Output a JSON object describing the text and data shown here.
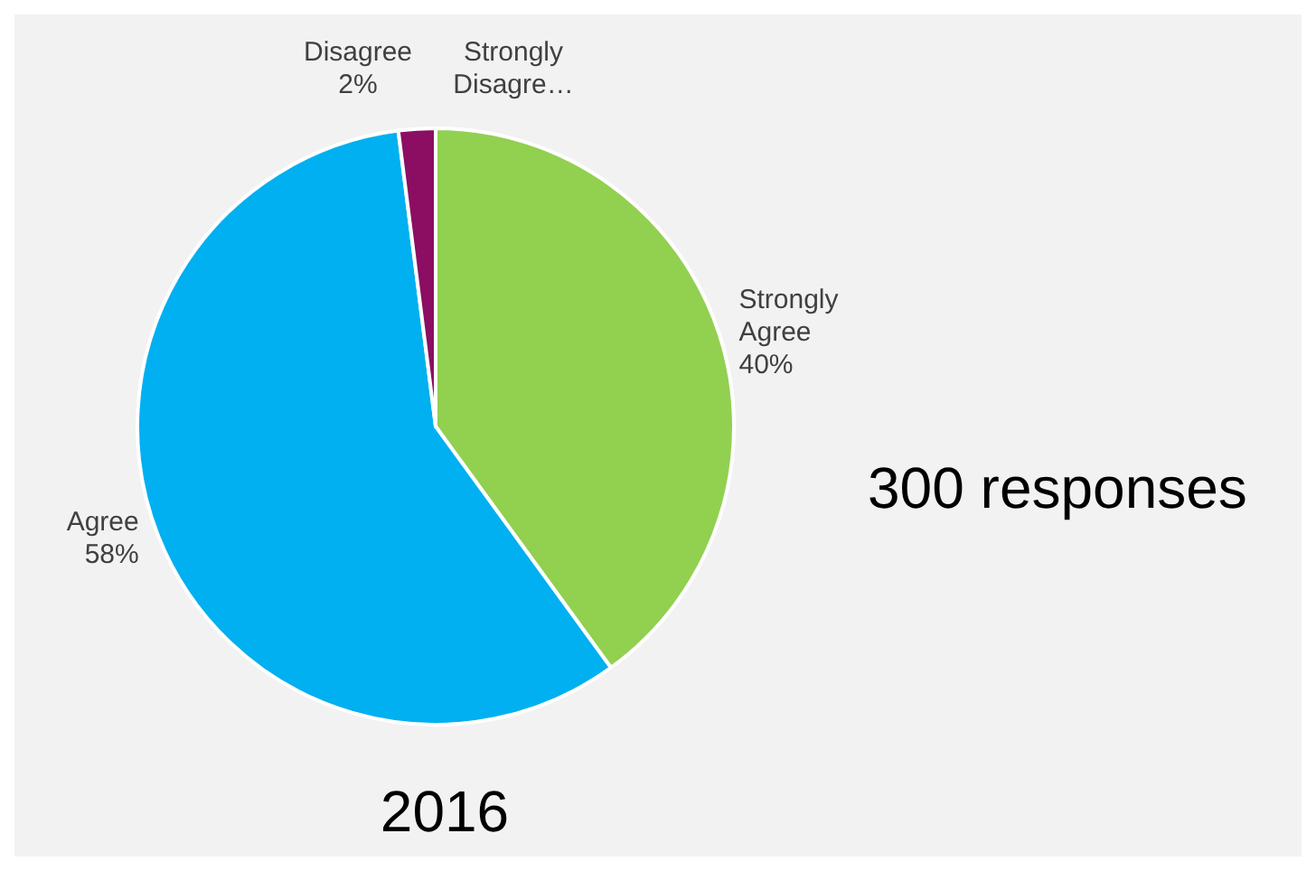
{
  "chart_data": {
    "type": "pie",
    "title": "2016",
    "annotations": [
      "300 responses"
    ],
    "categories": [
      "Strongly Agree",
      "Agree",
      "Disagree",
      "Strongly Disagre…"
    ],
    "values": [
      40,
      58,
      2,
      0
    ],
    "colors": [
      "#92d050",
      "#00b0f0",
      "#8b0e62",
      "#7030a0"
    ],
    "value_labels": [
      "40%",
      "58%",
      "2%",
      null
    ],
    "legend": false
  }
}
